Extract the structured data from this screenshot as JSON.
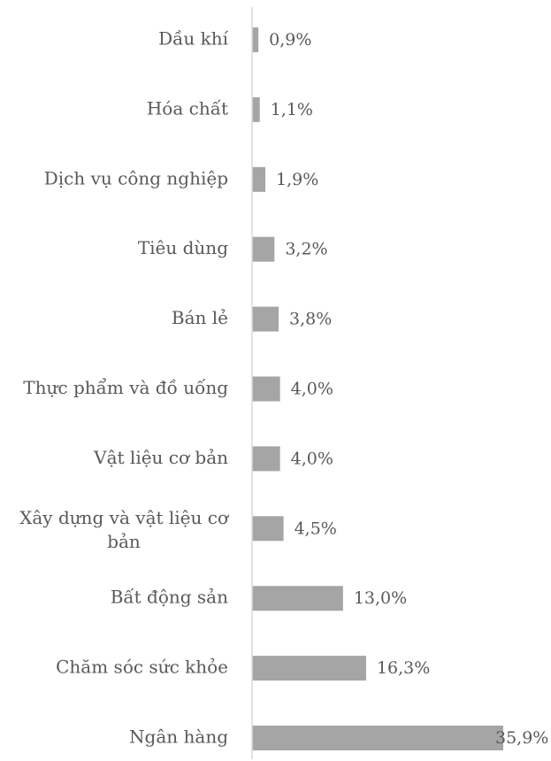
{
  "chart_data": {
    "type": "bar",
    "orientation": "horizontal",
    "categories": [
      "Dầu khí",
      "Hóa chất",
      "Dịch vụ công nghiệp",
      "Tiêu dùng",
      "Bán lẻ",
      "Thực phẩm và đồ uống",
      "Vật liệu cơ bản",
      "Xây dựng và vật liệu cơ bản",
      "Bất động sản",
      "Chăm sóc sức khỏe",
      "Ngân hàng"
    ],
    "values": [
      0.9,
      1.1,
      1.9,
      3.2,
      3.8,
      4.0,
      4.0,
      4.5,
      13.0,
      16.3,
      35.9
    ],
    "value_labels": [
      "0,9%",
      "1,1%",
      "1,9%",
      "3,2%",
      "3,8%",
      "4,0%",
      "4,0%",
      "4,5%",
      "13,0%",
      "16,3%",
      "35,9%"
    ],
    "xlim": [
      0,
      35.9
    ],
    "bar_color": "#a5a5a5",
    "axis_color": "#d9d9d9",
    "text_color": "#595959",
    "grid": false,
    "legend": false
  }
}
